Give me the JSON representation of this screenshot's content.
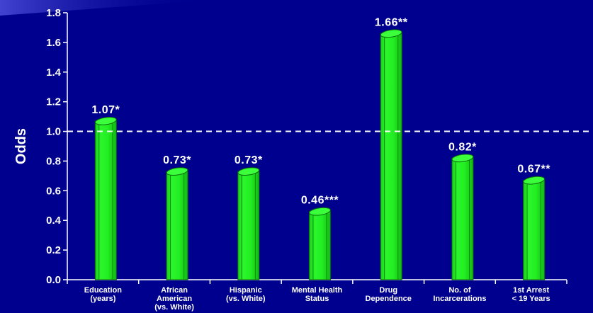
{
  "chart_data": {
    "type": "bar",
    "ylabel": "Odds",
    "xlabel": "",
    "ylim": [
      0,
      1.8
    ],
    "yticks": [
      "0.0",
      "0.2",
      "0.4",
      "0.6",
      "0.8",
      "1.0",
      "1.2",
      "1.4",
      "1.6",
      "1.8"
    ],
    "reference_line": {
      "value": 1.0,
      "style": "dashed"
    },
    "categories": [
      [
        "Education",
        "(years)"
      ],
      [
        "African",
        "American",
        "(vs. White)"
      ],
      [
        "Hispanic",
        "(vs. White)"
      ],
      [
        "Mental Health",
        "Status"
      ],
      [
        "Drug",
        "Dependence"
      ],
      [
        "No. of",
        "Incarcerations"
      ],
      [
        "1st Arrest",
        "< 19 Years"
      ]
    ],
    "values": [
      1.07,
      0.73,
      0.73,
      0.46,
      1.66,
      0.82,
      0.67
    ],
    "data_labels": [
      "1.07*",
      "0.73*",
      "0.73*",
      "0.46***",
      "1.66**",
      "0.82*",
      "0.67**"
    ],
    "grid": false
  },
  "colors": {
    "background": "#00008f",
    "bar": "#22ee22",
    "axis": "#ffffff",
    "reference_line": "#ffffff"
  }
}
